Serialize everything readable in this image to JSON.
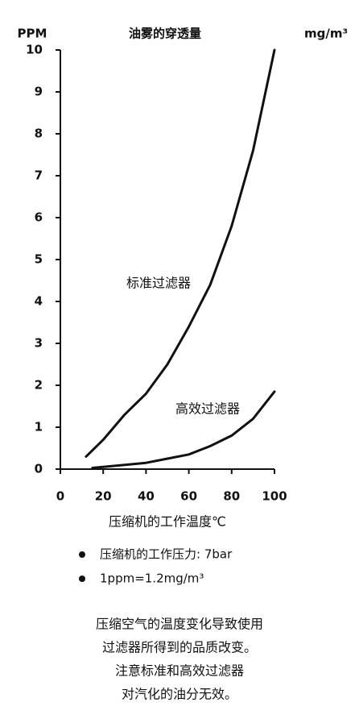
{
  "chart_data": {
    "type": "line",
    "title": "油雾的穿透量",
    "ylabel": "PPM",
    "y2label": "mg/m³",
    "xlabel": "压缩机的工作温度℃",
    "xlim": [
      0,
      100
    ],
    "xticks": [
      0,
      20,
      40,
      60,
      80,
      100
    ],
    "ylim": [
      0,
      10
    ],
    "yticks": [
      0,
      1,
      2,
      3,
      4,
      5,
      6,
      7,
      8,
      9,
      10
    ],
    "series": [
      {
        "name": "标准过滤器",
        "color": "#111111",
        "x": [
          12,
          20,
          30,
          40,
          50,
          60,
          70,
          80,
          90,
          100
        ],
        "values": [
          0.3,
          0.7,
          1.3,
          1.8,
          2.5,
          3.4,
          4.4,
          5.8,
          7.6,
          10
        ]
      },
      {
        "name": "高效过滤器",
        "color": "#111111",
        "x": [
          15,
          30,
          40,
          50,
          60,
          70,
          80,
          90,
          100
        ],
        "values": [
          0.03,
          0.1,
          0.15,
          0.25,
          0.35,
          0.55,
          0.8,
          1.2,
          1.85
        ]
      }
    ]
  },
  "notes": [
    "压缩机的工作压力: 7bar",
    "1ppm=1.2mg/m³"
  ],
  "caption": [
    "压缩空气的温度变化导致使用",
    "过滤器所得到的品质改变。",
    "注意标准和高效过滤器",
    "对汽化的油分无效。"
  ]
}
